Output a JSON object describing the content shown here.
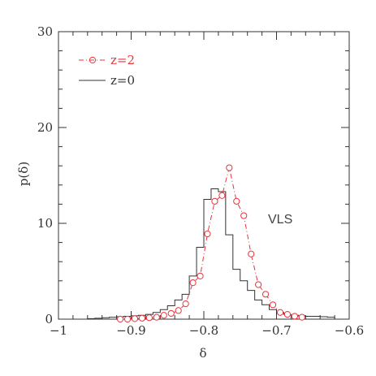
{
  "chart_data": {
    "type": "line",
    "xlabel": "δ",
    "ylabel": "p(δ)",
    "xlim": [
      -1,
      -0.6
    ],
    "ylim": [
      0,
      30
    ],
    "x_ticks": [
      -1,
      -0.9,
      -0.8,
      -0.7,
      -0.6
    ],
    "x_tick_labels": [
      "−1",
      "−0.9",
      "−0.8",
      "−0.7",
      "−0.6"
    ],
    "y_ticks": [
      0,
      10,
      20,
      30
    ],
    "y_tick_labels": [
      "0",
      "10",
      "20",
      "30"
    ],
    "grid": false,
    "legend_position": "top-left",
    "annotation": "VLS",
    "series": [
      {
        "name": "z=2",
        "style": "dashed line with open circles",
        "color": "#e8343c",
        "x": [
          -0.915,
          -0.905,
          -0.895,
          -0.885,
          -0.875,
          -0.865,
          -0.855,
          -0.845,
          -0.835,
          -0.825,
          -0.815,
          -0.805,
          -0.795,
          -0.785,
          -0.775,
          -0.765,
          -0.755,
          -0.745,
          -0.735,
          -0.725,
          -0.715,
          -0.705,
          -0.695,
          -0.685,
          -0.675,
          -0.665
        ],
        "y": [
          0.0,
          0.0,
          0.05,
          0.1,
          0.15,
          0.2,
          0.4,
          0.6,
          0.9,
          1.6,
          3.8,
          4.5,
          8.9,
          12.3,
          12.9,
          15.8,
          12.3,
          10.8,
          6.8,
          3.6,
          2.6,
          1.5,
          0.7,
          0.5,
          0.3,
          0.2
        ]
      },
      {
        "name": "z=0",
        "style": "step histogram",
        "color": "#333333",
        "bin_edges": [
          -0.96,
          -0.95,
          -0.94,
          -0.93,
          -0.92,
          -0.91,
          -0.9,
          -0.89,
          -0.88,
          -0.87,
          -0.86,
          -0.85,
          -0.84,
          -0.83,
          -0.82,
          -0.81,
          -0.8,
          -0.79,
          -0.78,
          -0.77,
          -0.76,
          -0.75,
          -0.74,
          -0.73,
          -0.72,
          -0.71,
          -0.7,
          -0.69,
          -0.68,
          -0.67,
          -0.66,
          -0.65,
          -0.64,
          -0.63,
          -0.62
        ],
        "values": [
          0.05,
          0.1,
          0.15,
          0.2,
          0.25,
          0.3,
          0.35,
          0.4,
          0.5,
          0.7,
          1.0,
          1.4,
          2.0,
          2.6,
          4.5,
          7.5,
          12.5,
          13.6,
          13.3,
          8.8,
          5.2,
          4.0,
          3.0,
          2.0,
          1.5,
          1.0,
          0.7,
          0.5,
          0.4,
          0.35,
          0.3,
          0.3,
          0.25,
          0.2
        ]
      }
    ]
  }
}
